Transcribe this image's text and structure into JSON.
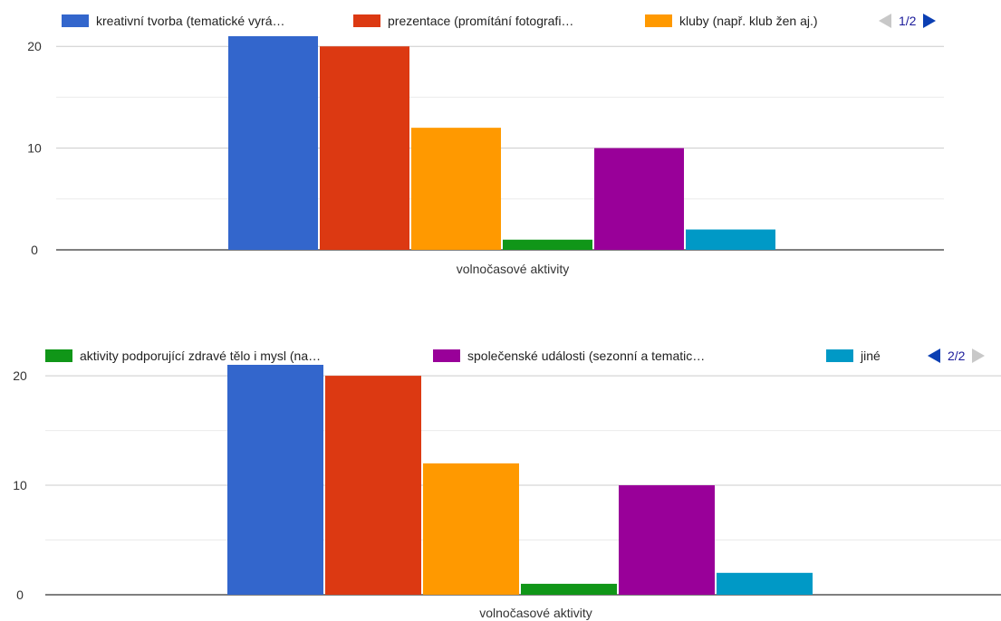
{
  "chart_data": [
    {
      "type": "bar",
      "categories": [
        "volnočasové aktivity"
      ],
      "xlabel": "volnočasové aktivity",
      "ylim": [
        0,
        21
      ],
      "yticks": [
        0,
        10,
        20
      ],
      "grid": true,
      "legend_position": "top",
      "series": [
        {
          "name": "kreativní tvorba (tematické vyrá…",
          "values": [
            21
          ],
          "color": "#3366cc"
        },
        {
          "name": "prezentace (promítání fotografi…",
          "values": [
            20
          ],
          "color": "#dc3912"
        },
        {
          "name": "kluby (např. klub žen aj.)",
          "values": [
            12
          ],
          "color": "#ff9900"
        },
        {
          "name": "aktivity podporující zdravé tělo i mysl (na…",
          "values": [
            1
          ],
          "color": "#109618"
        },
        {
          "name": "společenské události (sezonní a tematic…",
          "values": [
            10
          ],
          "color": "#990099"
        },
        {
          "name": "jiné",
          "values": [
            2
          ],
          "color": "#0099c6"
        }
      ],
      "legend_visible": [
        0,
        1,
        2
      ],
      "pager_text": "1/2"
    },
    {
      "type": "bar",
      "categories": [
        "volnočasové aktivity"
      ],
      "xlabel": "volnočasové aktivity",
      "ylim": [
        0,
        21
      ],
      "yticks": [
        0,
        10,
        20
      ],
      "grid": true,
      "legend_position": "top",
      "series": [
        {
          "name": "kreativní tvorba (tematické vyrá…",
          "values": [
            21
          ],
          "color": "#3366cc"
        },
        {
          "name": "prezentace (promítání fotografi…",
          "values": [
            20
          ],
          "color": "#dc3912"
        },
        {
          "name": "kluby (např. klub žen aj.)",
          "values": [
            12
          ],
          "color": "#ff9900"
        },
        {
          "name": "aktivity podporující zdravé tělo i mysl (na…",
          "values": [
            1
          ],
          "color": "#109618"
        },
        {
          "name": "společenské události (sezonní a tematic…",
          "values": [
            10
          ],
          "color": "#990099"
        },
        {
          "name": "jiné",
          "values": [
            2
          ],
          "color": "#0099c6"
        }
      ],
      "legend_visible": [
        3,
        4,
        5
      ],
      "pager_text": "2/2"
    }
  ]
}
